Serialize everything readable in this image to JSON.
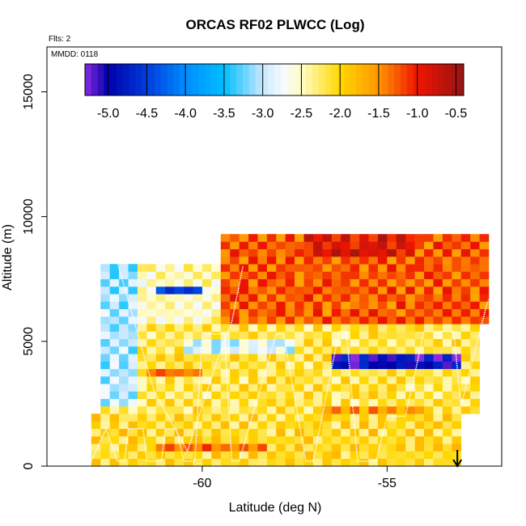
{
  "chart_data": {
    "type": "heatmap",
    "title": "ORCAS RF02 PLWCC (Log)",
    "annotations": {
      "flights": "Flts: 2",
      "mmdd": "MMDD: 0118"
    },
    "xlabel": "Latitude (deg N)",
    "ylabel": "Altitude (m)",
    "xlim": [
      -64.2,
      -51.9
    ],
    "ylim": [
      0,
      16800
    ],
    "x_ticks": [
      -60,
      -55
    ],
    "x_tick_labels": [
      "-60",
      "-55"
    ],
    "y_ticks": [
      0,
      5000,
      10000,
      15000
    ],
    "y_tick_labels": [
      "0",
      "5000",
      "10000",
      "15000"
    ],
    "colorbar": {
      "range": [
        -5.3,
        -0.4
      ],
      "ticks": [
        -5.0,
        -4.5,
        -4.0,
        -3.5,
        -3.0,
        -2.5,
        -2.0,
        -1.5,
        -1.0,
        -0.5
      ],
      "tick_labels": [
        "-5.0",
        "-4.5",
        "-4.0",
        "-3.5",
        "-3.0",
        "-2.5",
        "-2.0",
        "-1.5",
        "-1.0",
        "-0.5"
      ],
      "placement": "top-inside"
    },
    "cell_size": {
      "dlat": 0.25,
      "dalt": 300
    },
    "regions": [
      {
        "name": "lower-boundary",
        "lat": [
          -63.0,
          -52.9
        ],
        "alt": [
          0,
          2100
        ],
        "value": -1.9
      },
      {
        "name": "mid-layer",
        "lat": [
          -62.8,
          -52.5
        ],
        "alt": [
          2100,
          5800
        ],
        "value": -2.0
      },
      {
        "name": "west-upper",
        "lat": [
          -62.2,
          -59.6
        ],
        "alt": [
          5800,
          8200
        ],
        "value": -2.3
      },
      {
        "name": "upper-cloud",
        "lat": [
          -59.6,
          -52.3
        ],
        "alt": [
          5800,
          9400
        ],
        "value": -1.1
      },
      {
        "name": "cloud-top",
        "lat": [
          -57.2,
          -54.2
        ],
        "alt": [
          8400,
          9400
        ],
        "value": -0.7
      },
      {
        "name": "west-edge-thin",
        "lat": [
          -62.8,
          -61.8
        ],
        "alt": [
          2500,
          8200
        ],
        "value": -2.9
      }
    ],
    "features": [
      {
        "name": "dry-band-east",
        "lat": [
          -56.5,
          -53.0
        ],
        "alt": [
          3900,
          4400
        ],
        "value": -4.8
      },
      {
        "name": "dry-band-west",
        "lat": [
          -61.2,
          -60.0
        ],
        "alt": [
          6800,
          7100
        ],
        "value": -4.3
      },
      {
        "name": "wet-spot-mid",
        "lat": [
          -61.5,
          -60.1
        ],
        "alt": [
          3600,
          4000
        ],
        "value": -1.2
      },
      {
        "name": "wet-band-low",
        "lat": [
          -61.3,
          -58.2
        ],
        "alt": [
          600,
          900
        ],
        "value": -1.2
      },
      {
        "name": "wet-band-low-east",
        "lat": [
          -57.0,
          -55.3
        ],
        "alt": [
          800,
          1000
        ],
        "value": -1.2
      },
      {
        "name": "wet-band-mid",
        "lat": [
          -56.8,
          -54.0
        ],
        "alt": [
          2200,
          2500
        ],
        "value": -1.4
      },
      {
        "name": "clear-layer",
        "lat": [
          -60.5,
          -57.5
        ],
        "alt": [
          4500,
          5000
        ],
        "value": -2.7
      }
    ],
    "flight_track": {
      "lat": [
        -63.0,
        -62.6,
        -62.6,
        -62.3,
        -62.1,
        -62.0,
        -61.6,
        -61.5,
        -61.1,
        -61.0,
        -60.7,
        -60.5,
        -60.2,
        -60.0,
        -59.4,
        -59.2,
        -59.0,
        -58.0,
        -57.8,
        -57.2,
        -57.0,
        -56.3,
        -56.1,
        -55.8,
        -55.3,
        -55.0,
        -54.5,
        -54.0,
        -53.2,
        -53.0,
        -52.3,
        -52.2
      ],
      "alt": [
        200,
        1500,
        1500,
        200,
        200,
        1500,
        1500,
        200,
        200,
        1500,
        1500,
        200,
        200,
        5300,
        5300,
        200,
        200,
        5300,
        5300,
        200,
        200,
        5400,
        5400,
        200,
        200,
        2000,
        2000,
        5400,
        5400,
        2400,
        6500,
        6800
      ]
    },
    "flight_track_west_segment": {
      "lat": [
        -62.3,
        -61.3,
        -60.4,
        -59.6,
        -59.2,
        -58.9
      ],
      "alt": [
        8200,
        3000,
        600,
        4200,
        5800,
        8000
      ]
    },
    "marker": {
      "lat": -53.1,
      "label": "arrow-down"
    }
  }
}
